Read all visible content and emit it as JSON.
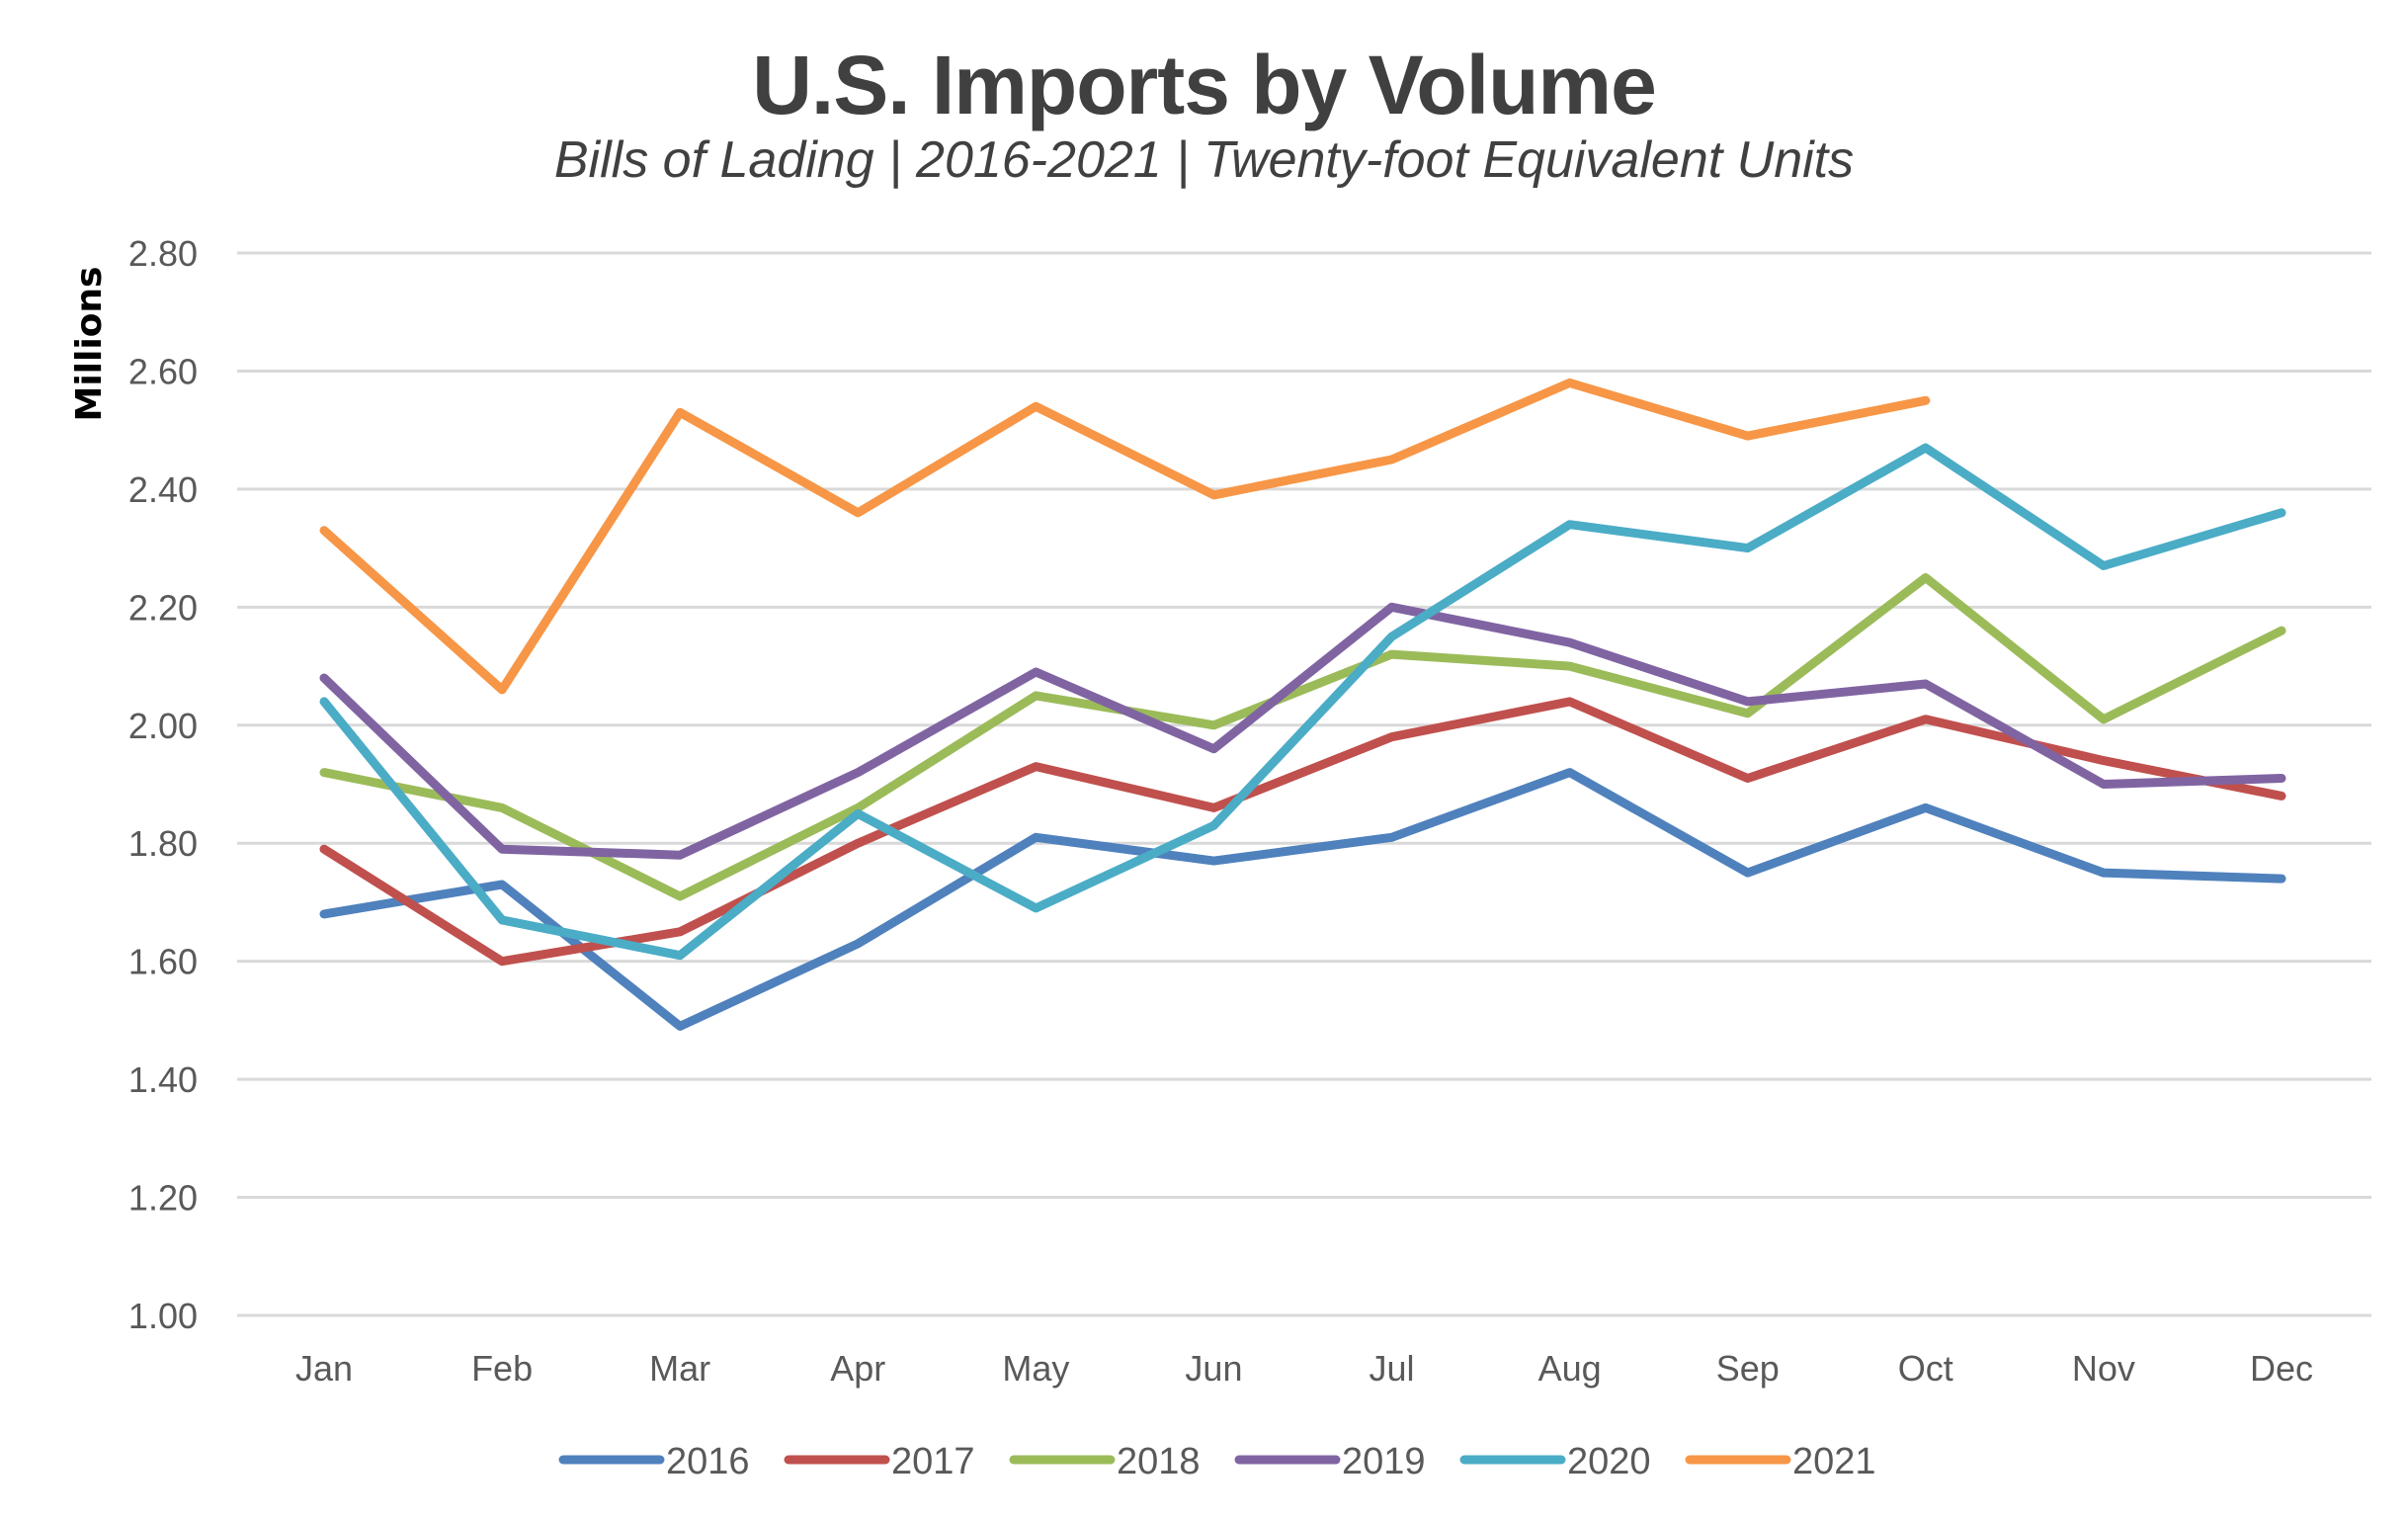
{
  "chart_data": {
    "type": "line",
    "title": "U.S. Imports by Volume",
    "subtitle": "Bills of Lading | 2016-2021 | Twenty-foot Equivalent Units",
    "xlabel": "",
    "ylabel": "Millions",
    "ylim": [
      1.0,
      2.8
    ],
    "yticks": [
      "1.00",
      "1.20",
      "1.40",
      "1.60",
      "1.80",
      "2.00",
      "2.20",
      "2.40",
      "2.60",
      "2.80"
    ],
    "ytick_values": [
      1.0,
      1.2,
      1.4,
      1.6,
      1.8,
      2.0,
      2.2,
      2.4,
      2.6,
      2.8
    ],
    "grid": true,
    "legend_position": "bottom",
    "categories": [
      "Jan",
      "Feb",
      "Mar",
      "Apr",
      "May",
      "Jun",
      "Jul",
      "Aug",
      "Sep",
      "Oct",
      "Nov",
      "Dec"
    ],
    "series": [
      {
        "name": "2016",
        "color": "#4F81BD",
        "values": [
          1.68,
          1.73,
          1.49,
          1.63,
          1.81,
          1.77,
          1.81,
          1.92,
          1.75,
          1.86,
          1.75,
          1.74
        ]
      },
      {
        "name": "2017",
        "color": "#C0504D",
        "values": [
          1.79,
          1.6,
          1.65,
          1.8,
          1.93,
          1.86,
          1.98,
          2.04,
          1.91,
          2.01,
          1.94,
          1.88
        ]
      },
      {
        "name": "2018",
        "color": "#9BBB59",
        "values": [
          1.92,
          1.86,
          1.71,
          1.86,
          2.05,
          2.0,
          2.12,
          2.1,
          2.02,
          2.25,
          2.01,
          2.16
        ]
      },
      {
        "name": "2019",
        "color": "#8064A2",
        "values": [
          2.08,
          1.79,
          1.78,
          1.92,
          2.09,
          1.96,
          2.2,
          2.14,
          2.04,
          2.07,
          1.9,
          1.91
        ]
      },
      {
        "name": "2020",
        "color": "#4BACC6",
        "values": [
          2.04,
          1.67,
          1.61,
          1.85,
          1.69,
          1.83,
          2.15,
          2.34,
          2.3,
          2.47,
          2.27,
          2.36
        ]
      },
      {
        "name": "2021",
        "color": "#F79646",
        "values": [
          2.33,
          2.06,
          2.53,
          2.36,
          2.54,
          2.39,
          2.45,
          2.58,
          2.49,
          2.55,
          null,
          null
        ]
      }
    ]
  }
}
